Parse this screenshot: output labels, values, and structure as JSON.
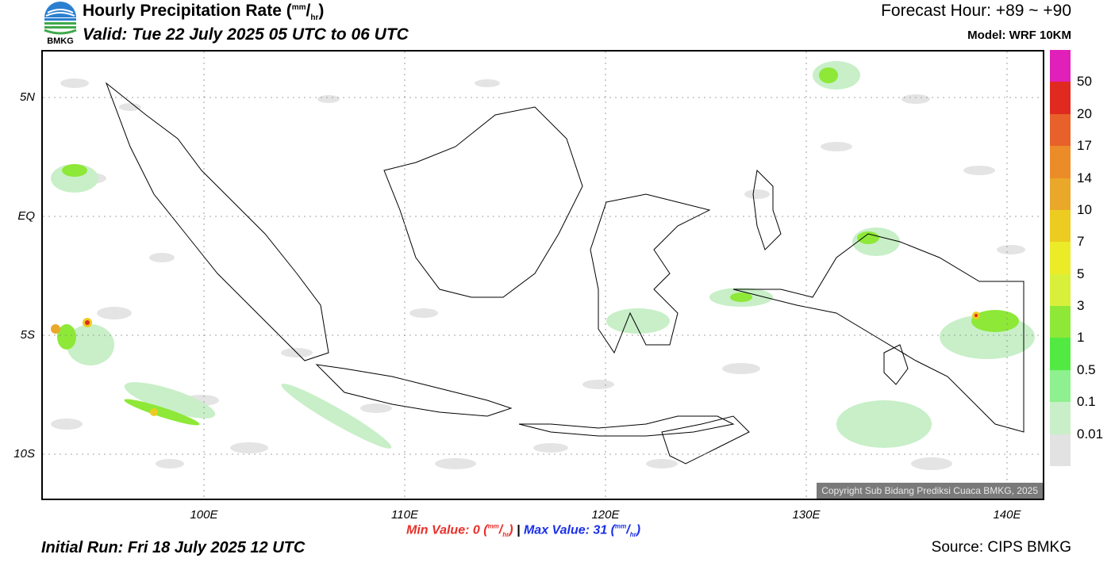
{
  "header": {
    "title_main": "Hourly Precipitation Rate (",
    "title_unit_num": "mm",
    "title_unit_den": "hr",
    "title_close": ")",
    "valid": "Valid: Tue 22 July 2025 05 UTC to 06 UTC",
    "forecast_hour": "Forecast Hour: +89 ~ +90",
    "model": "Model: WRF 10KM"
  },
  "logo": {
    "text": "BMKG",
    "icon": "bmkg-logo"
  },
  "axes": {
    "y_labels": [
      "5N",
      "EQ",
      "5S",
      "10S"
    ],
    "x_labels": [
      "100E",
      "110E",
      "120E",
      "130E",
      "140E"
    ]
  },
  "legend": {
    "labels": [
      "50",
      "20",
      "17",
      "14",
      "10",
      "7",
      "5",
      "3",
      "1",
      "0.5",
      "0.1",
      "0.01"
    ],
    "colors": [
      "#e020b8",
      "#e02a20",
      "#e8602a",
      "#ec8c28",
      "#eaa82a",
      "#eccc20",
      "#eceb28",
      "#d8f03a",
      "#8ee838",
      "#52ea42",
      "#8ef08e",
      "#c8efc8",
      "#e2e2e2"
    ]
  },
  "copyright": "Copyright Sub Bidang Prediksi Cuaca BMKG, 2025",
  "stats": {
    "min_label": "Min Value:",
    "min_value": "0",
    "max_label": "Max Value:",
    "max_value": "31",
    "unit_num": "mm",
    "unit_den": "hr",
    "separator": "|"
  },
  "footer": {
    "initial_run": "Initial Run: Fri 18 July 2025 12 UTC",
    "source": "Source: CIPS BMKG"
  }
}
